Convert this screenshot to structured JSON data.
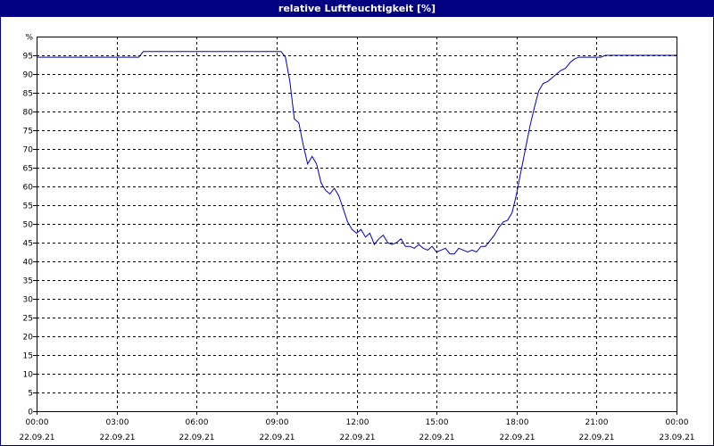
{
  "window": {
    "title": "relative Luftfeuchtigkeit [%]"
  },
  "chart_data": {
    "type": "line",
    "title": "relative Luftfeuchtigkeit [%]",
    "ylabel": "%",
    "xlabel": "",
    "ylim": [
      0,
      100
    ],
    "xlim": [
      "22.09.21 00:00",
      "23.09.21 00:00"
    ],
    "grid": true,
    "y_ticks": [
      0,
      5,
      10,
      15,
      20,
      25,
      30,
      35,
      40,
      45,
      50,
      55,
      60,
      65,
      70,
      75,
      80,
      85,
      90,
      95
    ],
    "x_ticks": [
      {
        "time": "00:00",
        "date": "22.09.21"
      },
      {
        "time": "03:00",
        "date": "22.09.21"
      },
      {
        "time": "06:00",
        "date": "22.09.21"
      },
      {
        "time": "09:00",
        "date": "22.09.21"
      },
      {
        "time": "12:00",
        "date": "22.09.21"
      },
      {
        "time": "15:00",
        "date": "22.09.21"
      },
      {
        "time": "18:00",
        "date": "22.09.21"
      },
      {
        "time": "21:00",
        "date": "22.09.21"
      },
      {
        "time": "00:00",
        "date": "23.09.21"
      }
    ],
    "series": [
      {
        "color": "#0000c0",
        "points": [
          [
            "22.09.21 00:00",
            94.5
          ],
          [
            "22.09.21 03:00",
            94.5
          ],
          [
            "22.09.21 03:50",
            94.5
          ],
          [
            "22.09.21 04:00",
            96
          ],
          [
            "22.09.21 06:00",
            96
          ],
          [
            "22.09.21 09:00",
            96
          ],
          [
            "22.09.21 09:10",
            96
          ],
          [
            "22.09.21 09:20",
            94.5
          ],
          [
            "22.09.21 09:30",
            88
          ],
          [
            "22.09.21 09:40",
            78
          ],
          [
            "22.09.21 09:50",
            77
          ],
          [
            "22.09.21 10:00",
            71
          ],
          [
            "22.09.21 10:10",
            66
          ],
          [
            "22.09.21 10:20",
            68
          ],
          [
            "22.09.21 10:30",
            66
          ],
          [
            "22.09.21 10:40",
            61
          ],
          [
            "22.09.21 10:50",
            59
          ],
          [
            "22.09.21 11:00",
            58
          ],
          [
            "22.09.21 11:10",
            59.5
          ],
          [
            "22.09.21 11:20",
            57.5
          ],
          [
            "22.09.21 11:30",
            54
          ],
          [
            "22.09.21 11:40",
            50.5
          ],
          [
            "22.09.21 11:50",
            48.5
          ],
          [
            "22.09.21 12:00",
            47.5
          ],
          [
            "22.09.21 12:10",
            48.5
          ],
          [
            "22.09.21 12:20",
            46.5
          ],
          [
            "22.09.21 12:30",
            47.5
          ],
          [
            "22.09.21 12:40",
            44.5
          ],
          [
            "22.09.21 12:50",
            46
          ],
          [
            "22.09.21 13:00",
            47
          ],
          [
            "22.09.21 13:10",
            45
          ],
          [
            "22.09.21 13:20",
            44.5
          ],
          [
            "22.09.21 13:30",
            45
          ],
          [
            "22.09.21 13:40",
            46
          ],
          [
            "22.09.21 13:50",
            44
          ],
          [
            "22.09.21 14:00",
            44
          ],
          [
            "22.09.21 14:10",
            43.5
          ],
          [
            "22.09.21 14:20",
            44.5
          ],
          [
            "22.09.21 14:30",
            43.5
          ],
          [
            "22.09.21 14:40",
            43
          ],
          [
            "22.09.21 14:50",
            44
          ],
          [
            "22.09.21 15:00",
            42.5
          ],
          [
            "22.09.21 15:10",
            43
          ],
          [
            "22.09.21 15:20",
            43.5
          ],
          [
            "22.09.21 15:30",
            42
          ],
          [
            "22.09.21 15:40",
            42
          ],
          [
            "22.09.21 15:50",
            43.5
          ],
          [
            "22.09.21 16:00",
            43
          ],
          [
            "22.09.21 16:10",
            42.5
          ],
          [
            "22.09.21 16:20",
            43
          ],
          [
            "22.09.21 16:30",
            42.5
          ],
          [
            "22.09.21 16:40",
            44
          ],
          [
            "22.09.21 16:50",
            44
          ],
          [
            "22.09.21 17:00",
            45.5
          ],
          [
            "22.09.21 17:10",
            47
          ],
          [
            "22.09.21 17:20",
            49
          ],
          [
            "22.09.21 17:30",
            50.5
          ],
          [
            "22.09.21 17:40",
            51
          ],
          [
            "22.09.21 17:50",
            53
          ],
          [
            "22.09.21 18:00",
            58
          ],
          [
            "22.09.21 18:10",
            64
          ],
          [
            "22.09.21 18:20",
            70
          ],
          [
            "22.09.21 18:30",
            76
          ],
          [
            "22.09.21 18:40",
            81
          ],
          [
            "22.09.21 18:50",
            85.5
          ],
          [
            "22.09.21 19:00",
            87.5
          ],
          [
            "22.09.21 19:10",
            88
          ],
          [
            "22.09.21 19:20",
            89
          ],
          [
            "22.09.21 19:30",
            90
          ],
          [
            "22.09.21 19:40",
            91
          ],
          [
            "22.09.21 19:50",
            91.5
          ],
          [
            "22.09.21 20:00",
            93
          ],
          [
            "22.09.21 20:10",
            94
          ],
          [
            "22.09.21 20:20",
            94.5
          ],
          [
            "22.09.21 20:30",
            94.5
          ],
          [
            "22.09.21 20:40",
            94.5
          ],
          [
            "22.09.21 20:50",
            94.5
          ],
          [
            "22.09.21 21:00",
            94.5
          ],
          [
            "22.09.21 21:10",
            94.5
          ],
          [
            "22.09.21 21:20",
            95
          ],
          [
            "22.09.21 22:00",
            95
          ],
          [
            "23.09.21 00:00",
            95
          ]
        ]
      }
    ]
  }
}
